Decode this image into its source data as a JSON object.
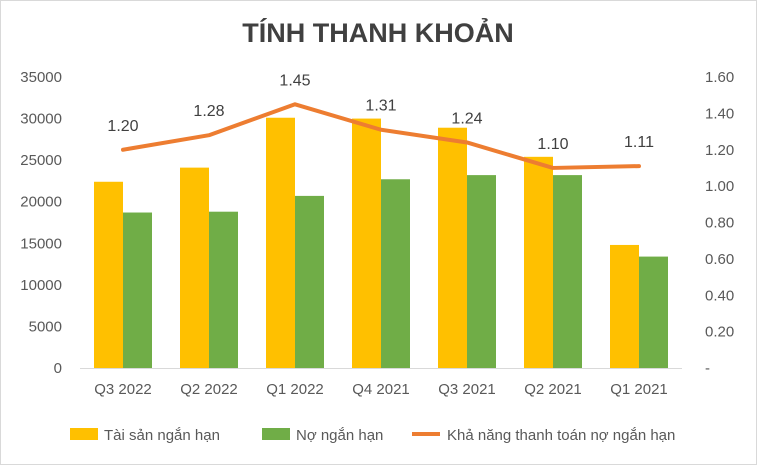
{
  "chart_data": {
    "type": "bar",
    "title": "TÍNH THANH KHOẢN",
    "categories": [
      "Q3 2022",
      "Q2 2022",
      "Q1 2022",
      "Q4 2021",
      "Q3 2021",
      "Q2 2021",
      "Q1 2021"
    ],
    "series": [
      {
        "name": "Tài sản ngắn hạn",
        "type": "bar",
        "axis": "left",
        "color": "#FFC000",
        "values": [
          22400,
          24100,
          30100,
          30000,
          28900,
          25400,
          14800
        ]
      },
      {
        "name": "Nợ ngắn hạn",
        "type": "bar",
        "axis": "left",
        "color": "#70AD47",
        "values": [
          18700,
          18800,
          20700,
          22700,
          23200,
          23200,
          13400
        ]
      },
      {
        "name": "Khả năng thanh toán nợ ngắn hạn",
        "type": "line",
        "axis": "right",
        "color": "#ED7D31",
        "values": [
          1.2,
          1.28,
          1.45,
          1.31,
          1.24,
          1.1,
          1.11
        ],
        "labels": [
          "1.20",
          "1.28",
          "1.45",
          "1.31",
          "1.24",
          "1.10",
          "1.11"
        ]
      }
    ],
    "ylim_left": [
      0,
      35000
    ],
    "yticks_left": [
      "0",
      "5000",
      "10000",
      "15000",
      "20000",
      "25000",
      "30000",
      "35000"
    ],
    "ylim_right": [
      0,
      1.6
    ],
    "yticks_right": [
      "-",
      "0.20",
      "0.40",
      "0.60",
      "0.80",
      "1.00",
      "1.20",
      "1.40",
      "1.60"
    ],
    "grid": false,
    "legend_position": "bottom"
  }
}
